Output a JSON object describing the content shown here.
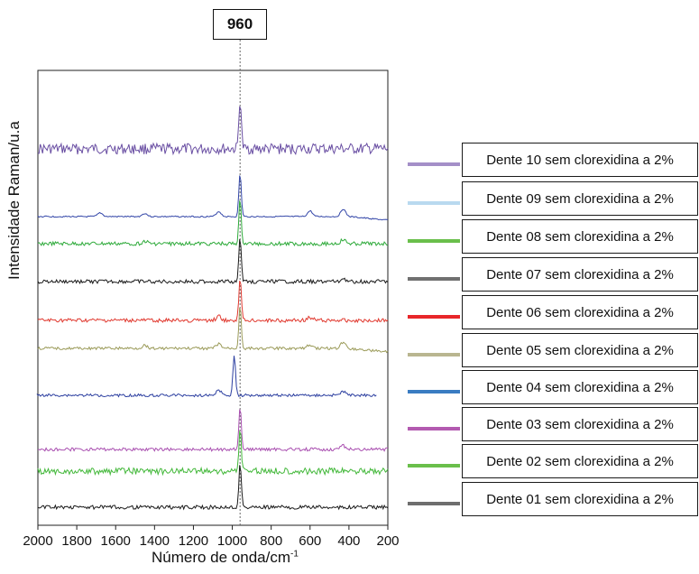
{
  "chart_data": {
    "type": "line",
    "xlabel": "Número de onda/cm",
    "xlabel_superscript": "-1",
    "ylabel": "Intensidade Raman/u.a",
    "xlim": [
      2000,
      200
    ],
    "x_reversed": true,
    "x_ticks": [
      "2000",
      "1800",
      "1600",
      "1400",
      "1200",
      "1000",
      "800",
      "600",
      "400",
      "200"
    ],
    "annotation": "960",
    "peak_line_x": 960,
    "grid": false,
    "legend_placement": "right",
    "series": [
      {
        "name": "Dente 10 sem clorexidina a 2%",
        "color": "#6a4fa3",
        "legend_color": "#a48fc8",
        "noise": 1.0,
        "peak": 1.0,
        "features": []
      },
      {
        "name": "Dente 09 sem clorexidina a 2%",
        "color": "#3346a8",
        "legend_color": "#b9d9ef",
        "noise": 0.12,
        "peak": 1.0,
        "features": [
          [
            1680,
            0.3
          ],
          [
            1450,
            0.25
          ],
          [
            1070,
            0.4
          ],
          [
            600,
            0.45
          ],
          [
            430,
            0.6
          ]
        ]
      },
      {
        "name": "Dente 08 sem clorexidina a 2%",
        "color": "#2eaa3a",
        "legend_color": "#6abf4b",
        "noise": 0.35,
        "peak": 1.0,
        "features": [
          [
            1450,
            0.2
          ],
          [
            430,
            0.3
          ]
        ]
      },
      {
        "name": "Dente 07 sem clorexidina a 2%",
        "color": "#1a1a1a",
        "legend_color": "#707070",
        "noise": 0.35,
        "peak": 1.0,
        "features": [
          [
            430,
            0.25
          ]
        ]
      },
      {
        "name": "Dente 06 sem clorexidina a 2%",
        "color": "#e0382e",
        "legend_color": "#e8262a",
        "noise": 0.35,
        "peak": 1.0,
        "features": [
          [
            1070,
            0.3
          ],
          [
            600,
            0.25
          ]
        ]
      },
      {
        "name": "Dente 05 sem clorexidina a 2%",
        "color": "#9a9a58",
        "legend_color": "#b9b690",
        "noise": 0.25,
        "peak": 1.0,
        "features": [
          [
            1450,
            0.25
          ],
          [
            1070,
            0.35
          ],
          [
            600,
            0.3
          ],
          [
            430,
            0.5
          ]
        ]
      },
      {
        "name": "Dente 04 sem clorexidina a 2%",
        "color": "#2c3fa0",
        "legend_color": "#3a7cc2",
        "noise": 0.25,
        "peak": 1.0,
        "features": [
          [
            1070,
            0.4
          ],
          [
            430,
            0.3
          ]
        ]
      },
      {
        "name": "Dente 03 sem clorexidina a 2%",
        "color": "#a94fb0",
        "legend_color": "#b35ab0",
        "noise": 0.3,
        "peak": 1.0,
        "features": [
          [
            430,
            0.3
          ]
        ]
      },
      {
        "name": "Dente 02 sem clorexidina a 2%",
        "color": "#43b83a",
        "legend_color": "#6abf4b",
        "noise": 0.6,
        "peak": 1.0,
        "features": []
      },
      {
        "name": "Dente 01 sem clorexidina a 2%",
        "color": "#1a1a1a",
        "legend_color": "#6e6e6e",
        "noise": 0.35,
        "peak": 1.0,
        "features": []
      }
    ]
  }
}
